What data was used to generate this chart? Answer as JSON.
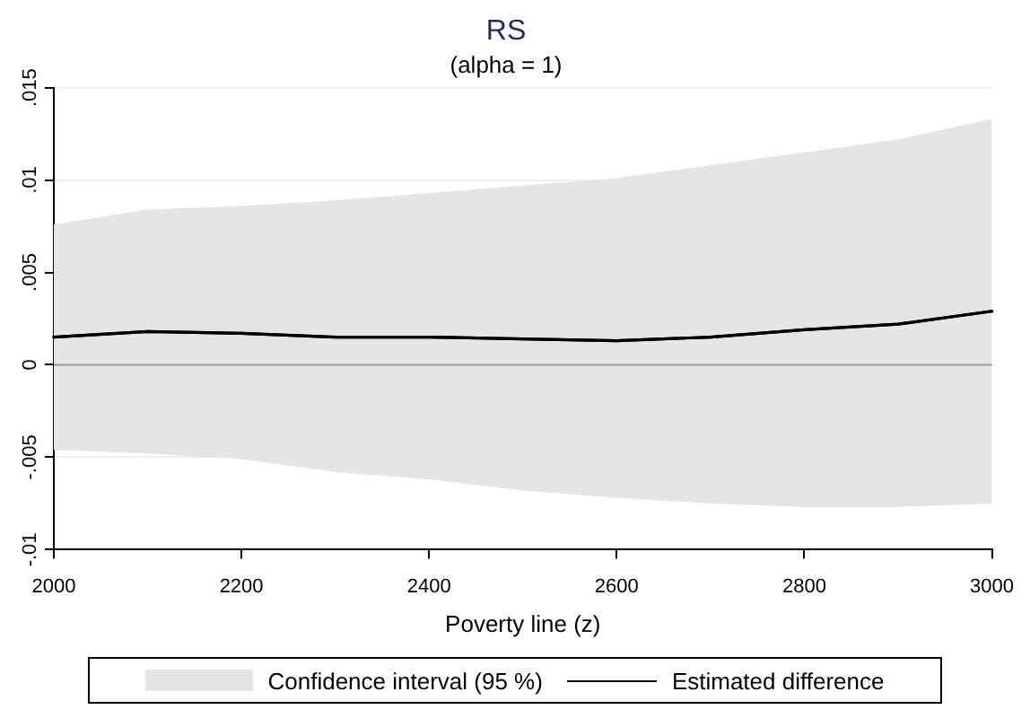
{
  "chart_data": {
    "type": "line",
    "title": "RS",
    "subtitle": "(alpha = 1)",
    "xlabel": "Poverty line (z)",
    "x": [
      2000,
      2100,
      2200,
      2300,
      2400,
      2500,
      2600,
      2700,
      2800,
      2900,
      3000
    ],
    "series": [
      {
        "name": "Estimated difference",
        "color": "#000000",
        "values": [
          0.0015,
          0.0018,
          0.0017,
          0.0015,
          0.0015,
          0.0014,
          0.0013,
          0.0015,
          0.0019,
          0.0022,
          0.0029
        ],
        "lower": [
          -0.0046,
          -0.0048,
          -0.0051,
          -0.0058,
          -0.0062,
          -0.0068,
          -0.0072,
          -0.0075,
          -0.0077,
          -0.0077,
          -0.0075
        ],
        "upper": [
          0.0076,
          0.0084,
          0.0086,
          0.0089,
          0.0093,
          0.0097,
          0.0101,
          0.0108,
          0.0115,
          0.0122,
          0.0133
        ]
      }
    ],
    "annotations": [
      "Confidence interval (95 %)"
    ],
    "xlim": [
      2000,
      3000
    ],
    "xticks": [
      2000,
      2200,
      2400,
      2600,
      2800,
      3000
    ],
    "ylim": [
      -0.01,
      0.015
    ],
    "yticks": [
      {
        "value": -0.01,
        "label": "-.01"
      },
      {
        "value": -0.005,
        "label": "-.005"
      },
      0,
      {
        "value": 0.005,
        "label": ".005"
      },
      {
        "value": 0.01,
        "label": ".01"
      },
      {
        "value": 0.015,
        "label": ".015"
      }
    ],
    "ref_lines": [
      {
        "axis": "y",
        "value": 0,
        "color": "#999999"
      }
    ],
    "grid": "y",
    "legend": "bottom",
    "marker": "none",
    "line_style": "solid"
  }
}
